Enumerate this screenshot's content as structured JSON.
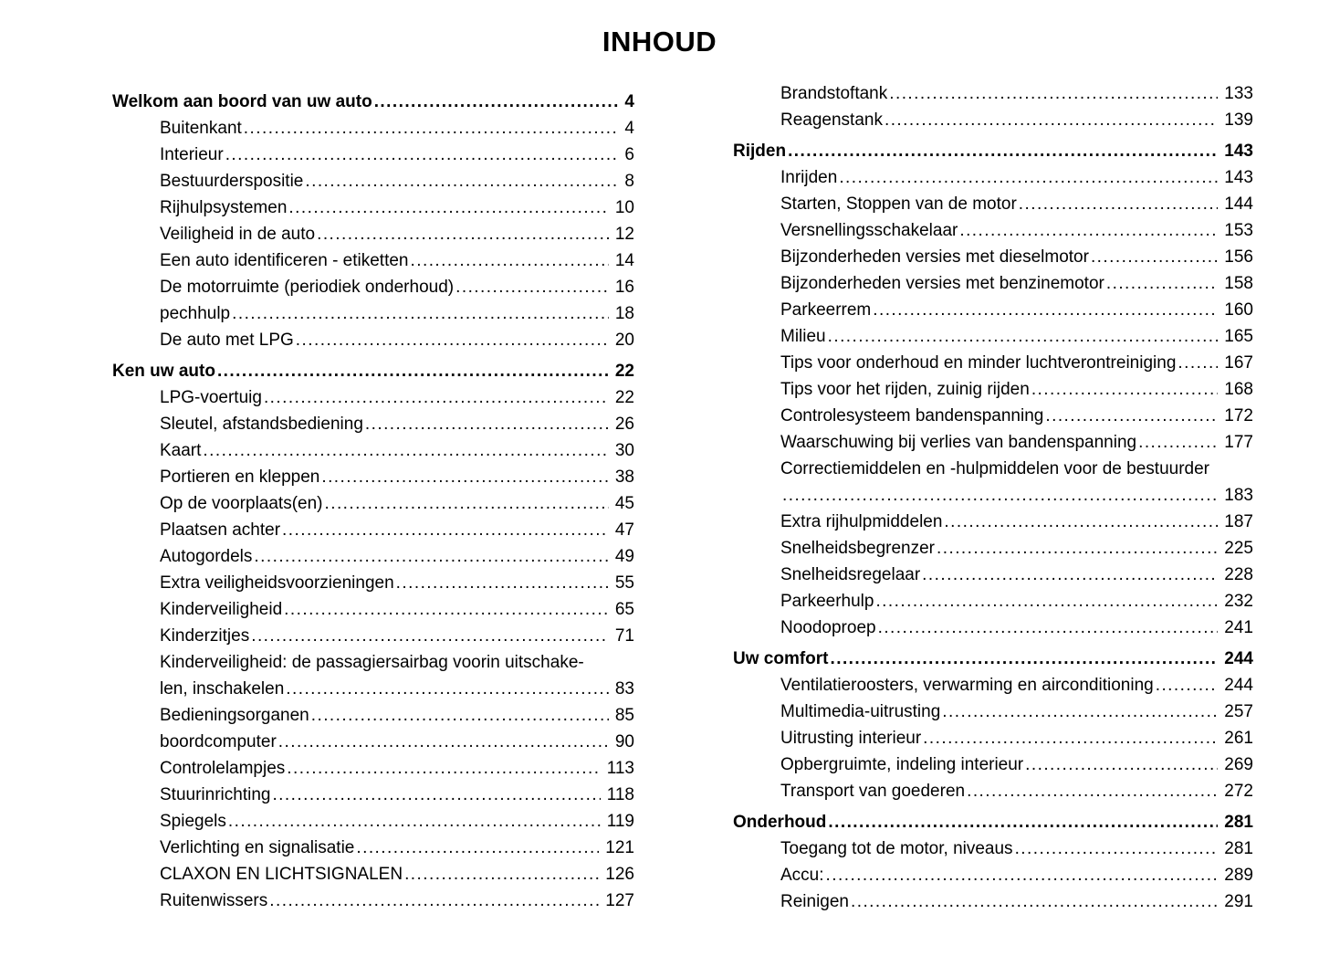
{
  "page_title": "INHOUD",
  "columns": [
    {
      "rows": [
        {
          "label": "Welkom aan boord van uw auto",
          "page": "4",
          "bold": true
        },
        {
          "label": "Buitenkant",
          "page": "4"
        },
        {
          "label": "Interieur",
          "page": "6"
        },
        {
          "label": "Bestuurderspositie",
          "page": "8"
        },
        {
          "label": "Rijhulpsystemen",
          "page": "10"
        },
        {
          "label": "Veiligheid in de auto",
          "page": "12"
        },
        {
          "label": "Een auto identificeren - etiketten",
          "page": "14"
        },
        {
          "label": "De motorruimte (periodiek onderhoud)",
          "page": "16"
        },
        {
          "label": "pechhulp",
          "page": "18"
        },
        {
          "label": "De auto met LPG",
          "page": "20"
        },
        {
          "label": "Ken uw auto",
          "page": "22",
          "bold": true
        },
        {
          "label": "LPG-voertuig",
          "page": "22"
        },
        {
          "label": "Sleutel, afstandsbediening",
          "page": "26"
        },
        {
          "label": "Kaart",
          "page": "30"
        },
        {
          "label": "Portieren en kleppen",
          "page": "38"
        },
        {
          "label": "Op de voorplaats(en)",
          "page": "45"
        },
        {
          "label": "Plaatsen achter",
          "page": "47"
        },
        {
          "label": "Autogordels",
          "page": "49"
        },
        {
          "label": "Extra veiligheidsvoorzieningen",
          "page": "55"
        },
        {
          "label": "Kinderveiligheid",
          "page": "65"
        },
        {
          "label": "Kinderzitjes",
          "page": "71"
        },
        {
          "label": "Kinderveiligheid: de passagiersairbag voorin uitschake-",
          "label2": "len, inschakelen",
          "page": "83"
        },
        {
          "label": "Bedieningsorganen",
          "page": "85"
        },
        {
          "label": "boordcomputer",
          "page": "90"
        },
        {
          "label": "Controlelampjes",
          "page": "113"
        },
        {
          "label": "Stuurinrichting",
          "page": "118"
        },
        {
          "label": "Spiegels",
          "page": "119"
        },
        {
          "label": "Verlichting en signalisatie",
          "page": "121"
        },
        {
          "label": "CLAXON EN LICHTSIGNALEN",
          "page": "126"
        },
        {
          "label": "Ruitenwissers",
          "page": "127"
        }
      ]
    },
    {
      "rows": [
        {
          "label": "Brandstoftank",
          "page": "133"
        },
        {
          "label": "Reagenstank",
          "page": "139"
        },
        {
          "label": "Rijden",
          "page": "143",
          "bold": true
        },
        {
          "label": "Inrijden",
          "page": "143"
        },
        {
          "label": "Starten, Stoppen van de motor",
          "page": "144"
        },
        {
          "label": "Versnellingsschakelaar",
          "page": "153"
        },
        {
          "label": "Bijzonderheden versies met dieselmotor",
          "page": "156"
        },
        {
          "label": "Bijzonderheden versies met benzinemotor",
          "page": "158"
        },
        {
          "label": "Parkeerrem",
          "page": "160"
        },
        {
          "label": "Milieu",
          "page": "165"
        },
        {
          "label": "Tips voor onderhoud en minder luchtverontreiniging",
          "page": "167"
        },
        {
          "label": "Tips voor het rijden, zuinig rijden",
          "page": "168"
        },
        {
          "label": "Controlesysteem bandenspanning",
          "page": "172"
        },
        {
          "label": "Waarschuwing bij verlies van bandenspanning",
          "page": "177"
        },
        {
          "label": "Correctiemiddelen en -hulpmiddelen voor de bestuurder",
          "label2": "",
          "page": "183"
        },
        {
          "label": "Extra rijhulpmiddelen",
          "page": "187"
        },
        {
          "label": "Snelheidsbegrenzer",
          "page": "225"
        },
        {
          "label": "Snelheidsregelaar",
          "page": "228"
        },
        {
          "label": "Parkeerhulp",
          "page": "232"
        },
        {
          "label": "Noodoproep",
          "page": "241"
        },
        {
          "label": "Uw comfort",
          "page": "244",
          "bold": true
        },
        {
          "label": "Ventilatieroosters, verwarming en airconditioning",
          "page": "244"
        },
        {
          "label": "Multimedia-uitrusting",
          "page": "257"
        },
        {
          "label": "Uitrusting interieur",
          "page": "261"
        },
        {
          "label": "Opbergruimte, indeling interieur",
          "page": "269"
        },
        {
          "label": "Transport van goederen",
          "page": "272"
        },
        {
          "label": "Onderhoud",
          "page": "281",
          "bold": true
        },
        {
          "label": "Toegang tot de motor, niveaus",
          "page": "281"
        },
        {
          "label": "Accu:",
          "page": "289"
        },
        {
          "label": "Reinigen",
          "page": "291"
        }
      ]
    }
  ]
}
